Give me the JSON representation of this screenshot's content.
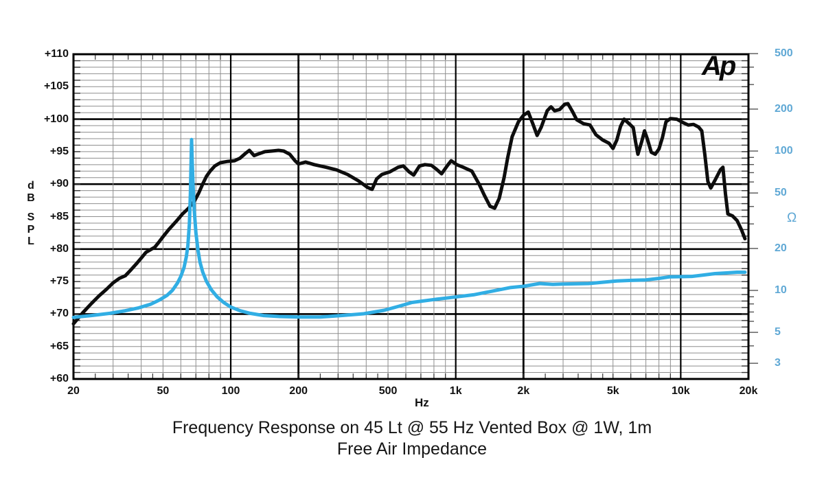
{
  "logo": {
    "text": "Ap"
  },
  "title": {
    "line1": "Frequency Response on 45 Lt @ 55 Hz Vented Box @ 1W, 1m",
    "line2": "Free Air Impedance"
  },
  "axes": {
    "x": {
      "unit_label": "Hz",
      "min": 20,
      "max": 20000,
      "ticks": [
        {
          "label": "20",
          "f": 20
        },
        {
          "label": "50",
          "f": 50
        },
        {
          "label": "100",
          "f": 100
        },
        {
          "label": "200",
          "f": 200
        },
        {
          "label": "500",
          "f": 500
        },
        {
          "label": "1k",
          "f": 1000
        },
        {
          "label": "2k",
          "f": 2000
        },
        {
          "label": "5k",
          "f": 5000
        },
        {
          "label": "10k",
          "f": 10000
        },
        {
          "label": "20k",
          "f": 20000
        }
      ]
    },
    "y_left": {
      "title_letters": [
        "d",
        "B",
        "",
        "S",
        "P",
        "L"
      ],
      "min": 60,
      "max": 110,
      "minor_step_db": 1,
      "ticks": [
        {
          "label": "+110",
          "db": 110
        },
        {
          "label": "+105",
          "db": 105
        },
        {
          "label": "+100",
          "db": 100
        },
        {
          "label": "+95",
          "db": 95
        },
        {
          "label": "+90",
          "db": 90
        },
        {
          "label": "+85",
          "db": 85
        },
        {
          "label": "+80",
          "db": 80
        },
        {
          "label": "+75",
          "db": 75
        },
        {
          "label": "+70",
          "db": 70
        },
        {
          "label": "+65",
          "db": 65
        },
        {
          "label": "+60",
          "db": 60
        }
      ]
    },
    "y_right": {
      "unit_label": "Ω",
      "label_color": "#5fa8d5",
      "ticks": [
        {
          "label": "500",
          "ohm": 500
        },
        {
          "label": "200",
          "ohm": 200
        },
        {
          "label": "100",
          "ohm": 100
        },
        {
          "label": "50",
          "ohm": 50
        },
        {
          "label": "20",
          "ohm": 20
        },
        {
          "label": "10",
          "ohm": 10
        },
        {
          "label": "5",
          "ohm": 5
        },
        {
          "label": "3",
          "ohm": 3
        }
      ]
    }
  },
  "chart_data": {
    "type": "line",
    "title": "Frequency Response on 45 Lt @ 55 Hz Vented Box @ 1W, 1m — Free Air Impedance",
    "xlabel": "Hz",
    "x_scale": "log",
    "x_range": [
      20,
      20000
    ],
    "left_axis": {
      "label": "dB SPL",
      "range": [
        60,
        110
      ],
      "scale": "linear"
    },
    "right_axis": {
      "label": "Ω",
      "range": [
        3,
        500
      ],
      "scale": "log"
    },
    "grid": true,
    "series": [
      {
        "name": "Frequency response (dB SPL)",
        "axis": "left",
        "color": "#0d0d0d",
        "points": [
          [
            20,
            68.5
          ],
          [
            22,
            70.2
          ],
          [
            24,
            71.6
          ],
          [
            26,
            72.8
          ],
          [
            28,
            73.8
          ],
          [
            30,
            74.8
          ],
          [
            32,
            75.5
          ],
          [
            34,
            75.9
          ],
          [
            36,
            76.8
          ],
          [
            38,
            77.7
          ],
          [
            40,
            78.6
          ],
          [
            42,
            79.5
          ],
          [
            44,
            79.9
          ],
          [
            46,
            80.3
          ],
          [
            48,
            81.1
          ],
          [
            50,
            81.9
          ],
          [
            53,
            83.0
          ],
          [
            57,
            84.2
          ],
          [
            61,
            85.4
          ],
          [
            65,
            86.3
          ],
          [
            69,
            87.4
          ],
          [
            72,
            88.6
          ],
          [
            75,
            90.0
          ],
          [
            78,
            91.2
          ],
          [
            81,
            92.0
          ],
          [
            85,
            92.8
          ],
          [
            90,
            93.3
          ],
          [
            97,
            93.5
          ],
          [
            104,
            93.6
          ],
          [
            110,
            94.0
          ],
          [
            116,
            94.7
          ],
          [
            121,
            95.2
          ],
          [
            127,
            94.4
          ],
          [
            134,
            94.7
          ],
          [
            142,
            95.0
          ],
          [
            152,
            95.1
          ],
          [
            163,
            95.2
          ],
          [
            172,
            95.1
          ],
          [
            183,
            94.6
          ],
          [
            193,
            93.6
          ],
          [
            200,
            93.1
          ],
          [
            215,
            93.4
          ],
          [
            235,
            93.0
          ],
          [
            265,
            92.6
          ],
          [
            295,
            92.2
          ],
          [
            330,
            91.5
          ],
          [
            370,
            90.5
          ],
          [
            405,
            89.5
          ],
          [
            425,
            89.2
          ],
          [
            445,
            90.8
          ],
          [
            470,
            91.5
          ],
          [
            510,
            91.9
          ],
          [
            555,
            92.6
          ],
          [
            585,
            92.8
          ],
          [
            620,
            91.9
          ],
          [
            650,
            91.4
          ],
          [
            690,
            92.8
          ],
          [
            730,
            93.0
          ],
          [
            780,
            92.9
          ],
          [
            820,
            92.3
          ],
          [
            865,
            91.6
          ],
          [
            920,
            92.9
          ],
          [
            955,
            93.6
          ],
          [
            1010,
            93.0
          ],
          [
            1080,
            92.6
          ],
          [
            1180,
            92.0
          ],
          [
            1270,
            90.0
          ],
          [
            1340,
            88.3
          ],
          [
            1420,
            86.6
          ],
          [
            1490,
            86.3
          ],
          [
            1560,
            87.8
          ],
          [
            1640,
            91.0
          ],
          [
            1700,
            94.0
          ],
          [
            1780,
            97.3
          ],
          [
            1900,
            99.6
          ],
          [
            2000,
            100.6
          ],
          [
            2100,
            101.1
          ],
          [
            2200,
            99.3
          ],
          [
            2300,
            97.5
          ],
          [
            2400,
            98.8
          ],
          [
            2550,
            101.3
          ],
          [
            2650,
            101.9
          ],
          [
            2750,
            101.3
          ],
          [
            2900,
            101.5
          ],
          [
            3050,
            102.3
          ],
          [
            3150,
            102.4
          ],
          [
            3300,
            101.2
          ],
          [
            3450,
            99.9
          ],
          [
            3700,
            99.3
          ],
          [
            3950,
            99.1
          ],
          [
            4200,
            97.6
          ],
          [
            4500,
            96.8
          ],
          [
            4800,
            96.3
          ],
          [
            5000,
            95.5
          ],
          [
            5200,
            96.8
          ],
          [
            5400,
            98.9
          ],
          [
            5600,
            100.0
          ],
          [
            5900,
            99.3
          ],
          [
            6150,
            98.7
          ],
          [
            6300,
            96.5
          ],
          [
            6450,
            94.6
          ],
          [
            6700,
            96.5
          ],
          [
            6900,
            98.2
          ],
          [
            7100,
            97.0
          ],
          [
            7400,
            94.9
          ],
          [
            7700,
            94.6
          ],
          [
            8000,
            95.4
          ],
          [
            8300,
            97.2
          ],
          [
            8600,
            99.6
          ],
          [
            9000,
            100.1
          ],
          [
            9600,
            100.0
          ],
          [
            10200,
            99.5
          ],
          [
            10800,
            99.1
          ],
          [
            11400,
            99.2
          ],
          [
            12000,
            98.8
          ],
          [
            12400,
            98.2
          ],
          [
            12800,
            94.5
          ],
          [
            13200,
            90.4
          ],
          [
            13600,
            89.4
          ],
          [
            14200,
            90.6
          ],
          [
            15000,
            92.2
          ],
          [
            15400,
            92.6
          ],
          [
            15800,
            88.5
          ],
          [
            16200,
            85.4
          ],
          [
            17000,
            85.1
          ],
          [
            17800,
            84.4
          ],
          [
            18600,
            83.0
          ],
          [
            19300,
            81.6
          ]
        ]
      },
      {
        "name": "Free air impedance (Ω)",
        "axis": "right",
        "color": "#31aee4",
        "points": [
          [
            20,
            6.4
          ],
          [
            24,
            6.6
          ],
          [
            29,
            6.85
          ],
          [
            34,
            7.15
          ],
          [
            39,
            7.5
          ],
          [
            44,
            7.95
          ],
          [
            48,
            8.5
          ],
          [
            52,
            9.2
          ],
          [
            55,
            10.0
          ],
          [
            58,
            11.3
          ],
          [
            60,
            12.6
          ],
          [
            62,
            14.6
          ],
          [
            63.5,
            17.5
          ],
          [
            64.5,
            21
          ],
          [
            65.5,
            30
          ],
          [
            66.2,
            50
          ],
          [
            66.6,
            80
          ],
          [
            67,
            121
          ],
          [
            67.4,
            85
          ],
          [
            68,
            58
          ],
          [
            68.8,
            38
          ],
          [
            70,
            26
          ],
          [
            71.5,
            19.5
          ],
          [
            73,
            16
          ],
          [
            75,
            13.6
          ],
          [
            78,
            11.6
          ],
          [
            82,
            10.1
          ],
          [
            87,
            9.0
          ],
          [
            93,
            8.2
          ],
          [
            100,
            7.6
          ],
          [
            110,
            7.15
          ],
          [
            122,
            6.85
          ],
          [
            140,
            6.6
          ],
          [
            165,
            6.5
          ],
          [
            200,
            6.45
          ],
          [
            250,
            6.45
          ],
          [
            310,
            6.6
          ],
          [
            390,
            6.8
          ],
          [
            480,
            7.2
          ],
          [
            560,
            7.7
          ],
          [
            640,
            8.2
          ],
          [
            800,
            8.6
          ],
          [
            955,
            8.9
          ],
          [
            1200,
            9.3
          ],
          [
            1460,
            9.9
          ],
          [
            1760,
            10.5
          ],
          [
            2000,
            10.7
          ],
          [
            2360,
            11.2
          ],
          [
            2700,
            11.05
          ],
          [
            2970,
            11.1
          ],
          [
            3400,
            11.15
          ],
          [
            3900,
            11.2
          ],
          [
            4500,
            11.45
          ],
          [
            5200,
            11.7
          ],
          [
            6000,
            11.8
          ],
          [
            7000,
            11.9
          ],
          [
            8000,
            12.2
          ],
          [
            8900,
            12.5
          ],
          [
            10000,
            12.55
          ],
          [
            11200,
            12.6
          ],
          [
            12600,
            12.9
          ],
          [
            14200,
            13.2
          ],
          [
            16000,
            13.35
          ],
          [
            17800,
            13.5
          ],
          [
            19300,
            13.5
          ]
        ]
      }
    ]
  }
}
